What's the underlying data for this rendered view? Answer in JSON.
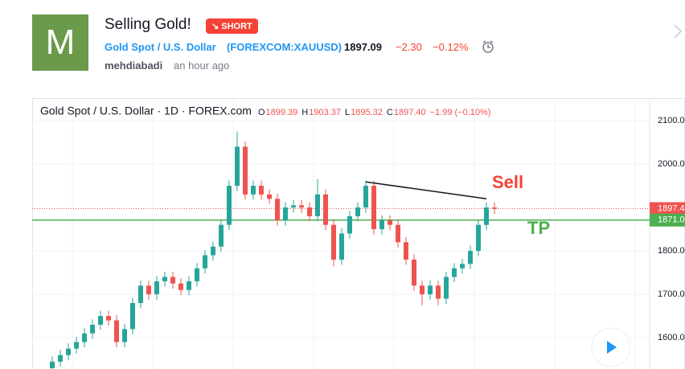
{
  "idea": {
    "avatar": "M",
    "title": "Selling Gold!",
    "badge": "↘ SHORT",
    "symbol_name": "Gold Spot / U.S. Dollar",
    "symbol_code": "(FOREXCOM:XAUUSD)",
    "price": "1897.09",
    "change": "−2.30",
    "change_pct": "−0.12%",
    "author": "mehdiabadi",
    "time": "an hour ago"
  },
  "chart_data": {
    "type": "candlestick",
    "legend": "Gold Spot / U.S. Dollar · 1D · FOREX.com",
    "ohlc": [
      [
        "O",
        "1899.39"
      ],
      [
        "H",
        "1903.37"
      ],
      [
        "L",
        "1895.32"
      ],
      [
        "C",
        "1897.40"
      ]
    ],
    "legend_change": "−1.99 (−0.10%)",
    "open": [
      1530,
      1545,
      1560,
      1575,
      1590,
      1610,
      1630,
      1650,
      1640,
      1590,
      1620,
      1680,
      1720,
      1700,
      1730,
      1740,
      1725,
      1710,
      1730,
      1760,
      1790,
      1810,
      1860,
      1950,
      2040,
      1930,
      1950,
      1930,
      1920,
      1870,
      1900,
      1905,
      1900,
      1880,
      1930,
      1860,
      1780,
      1840,
      1880,
      1900,
      1950,
      1850,
      1870,
      1860,
      1820,
      1780,
      1720,
      1700,
      1720,
      1690,
      1740,
      1760,
      1770,
      1800,
      1860,
      1900
    ],
    "high": [
      1557,
      1572,
      1587,
      1602,
      1622,
      1642,
      1662,
      1662,
      1652,
      1632,
      1692,
      1732,
      1732,
      1742,
      1752,
      1752,
      1737,
      1742,
      1772,
      1802,
      1822,
      1872,
      1962,
      2075,
      2052,
      1962,
      1962,
      1942,
      1932,
      1912,
      1917,
      1917,
      1912,
      1965,
      1942,
      1872,
      1852,
      1892,
      1912,
      1962,
      1962,
      1882,
      1882,
      1872,
      1832,
      1792,
      1732,
      1732,
      1732,
      1752,
      1772,
      1782,
      1812,
      1872,
      1912,
      1912
    ],
    "low": [
      1518,
      1533,
      1548,
      1563,
      1578,
      1598,
      1618,
      1628,
      1578,
      1578,
      1608,
      1668,
      1688,
      1688,
      1718,
      1713,
      1698,
      1698,
      1718,
      1748,
      1778,
      1798,
      1848,
      1938,
      1918,
      1918,
      1918,
      1908,
      1858,
      1858,
      1888,
      1888,
      1868,
      1868,
      1848,
      1765,
      1768,
      1828,
      1868,
      1888,
      1838,
      1838,
      1848,
      1808,
      1768,
      1708,
      1675,
      1688,
      1675,
      1678,
      1728,
      1748,
      1758,
      1788,
      1848,
      1885
    ],
    "close": [
      1545,
      1560,
      1575,
      1590,
      1610,
      1630,
      1650,
      1640,
      1590,
      1620,
      1680,
      1720,
      1700,
      1730,
      1740,
      1725,
      1710,
      1730,
      1760,
      1790,
      1810,
      1860,
      1950,
      2040,
      1930,
      1950,
      1930,
      1920,
      1870,
      1900,
      1905,
      1900,
      1880,
      1930,
      1860,
      1780,
      1840,
      1880,
      1900,
      1950,
      1850,
      1870,
      1860,
      1820,
      1780,
      1720,
      1700,
      1720,
      1690,
      1740,
      1760,
      1770,
      1800,
      1860,
      1900,
      1897
    ],
    "up_color": "#26a69a",
    "down_color": "#ef5350",
    "ylim": [
      1528,
      2152
    ],
    "yticks": [
      {
        "value": 1600,
        "label": "1600.0"
      },
      {
        "value": 1700,
        "label": "1700.0"
      },
      {
        "value": 1800,
        "label": "1800.0"
      },
      {
        "value": 2000,
        "label": "2000.0"
      },
      {
        "value": 2100,
        "label": "2100.0"
      }
    ],
    "price_labels": [
      {
        "value": 1897.4,
        "label": "1897.4"
      },
      {
        "value": 1871.0,
        "label": "1871.0"
      }
    ],
    "trendline": {
      "x": [
        39,
        54
      ],
      "y": [
        1959,
        1920
      ]
    },
    "annotations": [
      {
        "text": "Sell",
        "color": "#f44336"
      },
      {
        "text": "TP",
        "color": "#4caf50"
      }
    ]
  }
}
